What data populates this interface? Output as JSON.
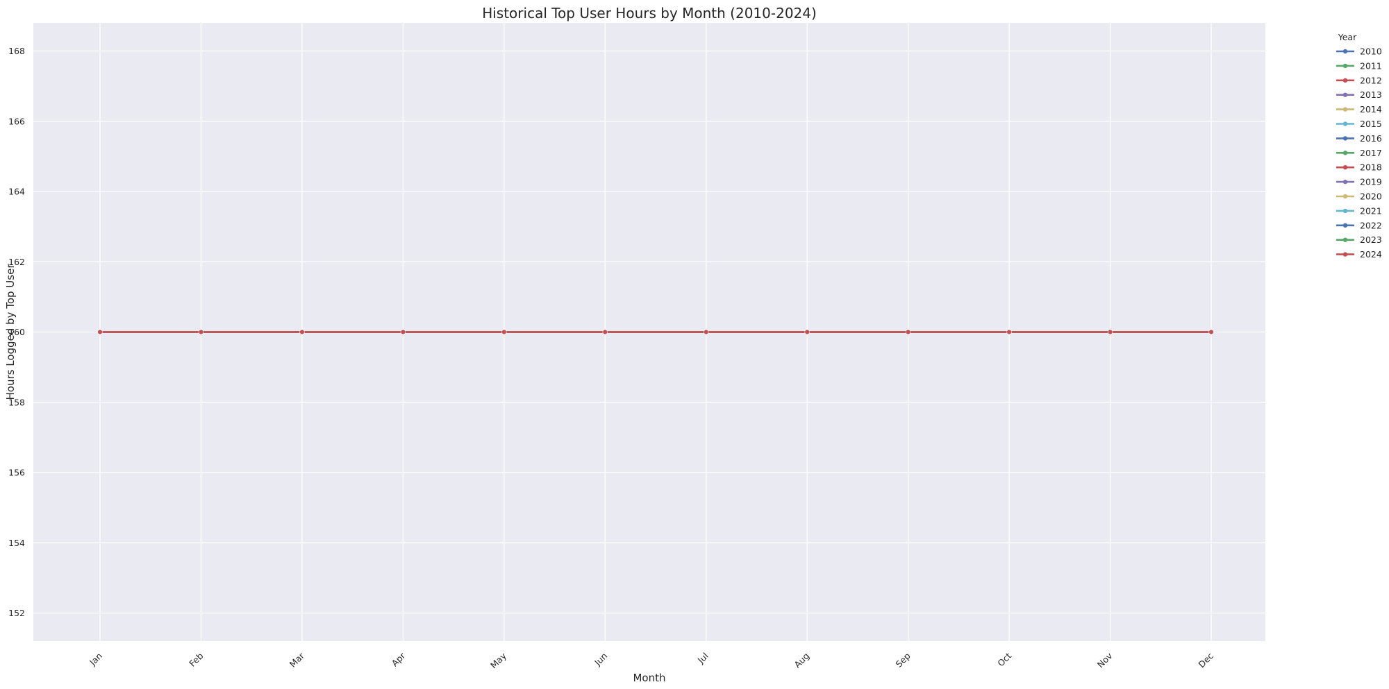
{
  "chart_data": {
    "type": "line",
    "title": "Historical Top User Hours by Month (2010-2024)",
    "xlabel": "Month",
    "ylabel": "Hours Logged by Top User",
    "categories": [
      "Jan",
      "Feb",
      "Mar",
      "Apr",
      "May",
      "Jun",
      "Jul",
      "Aug",
      "Sep",
      "Oct",
      "Nov",
      "Dec"
    ],
    "ylim": [
      151.2,
      168.8
    ],
    "yticks": [
      152,
      154,
      156,
      158,
      160,
      162,
      164,
      166,
      168
    ],
    "grid": true,
    "legend_title": "Year",
    "legend_position": "outside-top-right",
    "background_color": "#EAEAF2",
    "grid_color": "#FFFFFF",
    "series": [
      {
        "name": "2010",
        "color": "#4C72B0",
        "values": [
          160,
          160,
          160,
          160,
          160,
          160,
          160,
          160,
          160,
          160,
          160,
          160
        ]
      },
      {
        "name": "2011",
        "color": "#55A868",
        "values": [
          160,
          160,
          160,
          160,
          160,
          160,
          160,
          160,
          160,
          160,
          160,
          160
        ]
      },
      {
        "name": "2012",
        "color": "#C44E52",
        "values": [
          160,
          160,
          160,
          160,
          160,
          160,
          160,
          160,
          160,
          160,
          160,
          160
        ]
      },
      {
        "name": "2013",
        "color": "#8172B2",
        "values": [
          160,
          160,
          160,
          160,
          160,
          160,
          160,
          160,
          160,
          160,
          160,
          160
        ]
      },
      {
        "name": "2014",
        "color": "#CCB974",
        "values": [
          160,
          160,
          160,
          160,
          160,
          160,
          160,
          160,
          160,
          160,
          160,
          160
        ]
      },
      {
        "name": "2015",
        "color": "#64B5CD",
        "values": [
          160,
          160,
          160,
          160,
          160,
          160,
          160,
          160,
          160,
          160,
          160,
          160
        ]
      },
      {
        "name": "2016",
        "color": "#4C72B0",
        "values": [
          160,
          160,
          160,
          160,
          160,
          160,
          160,
          160,
          160,
          160,
          160,
          160
        ]
      },
      {
        "name": "2017",
        "color": "#55A868",
        "values": [
          160,
          160,
          160,
          160,
          160,
          160,
          160,
          160,
          160,
          160,
          160,
          160
        ]
      },
      {
        "name": "2018",
        "color": "#C44E52",
        "values": [
          160,
          160,
          160,
          160,
          160,
          160,
          160,
          160,
          160,
          160,
          160,
          160
        ]
      },
      {
        "name": "2019",
        "color": "#8172B2",
        "values": [
          160,
          160,
          160,
          160,
          160,
          160,
          160,
          160,
          160,
          160,
          160,
          160
        ]
      },
      {
        "name": "2020",
        "color": "#CCB974",
        "values": [
          160,
          160,
          160,
          160,
          160,
          160,
          160,
          160,
          160,
          160,
          160,
          160
        ]
      },
      {
        "name": "2021",
        "color": "#64B5CD",
        "values": [
          160,
          160,
          160,
          160,
          160,
          160,
          160,
          160,
          160,
          160,
          160,
          160
        ]
      },
      {
        "name": "2022",
        "color": "#4C72B0",
        "values": [
          160,
          160,
          160,
          160,
          160,
          160,
          160,
          160,
          160,
          160,
          160,
          160
        ]
      },
      {
        "name": "2023",
        "color": "#55A868",
        "values": [
          160,
          160,
          160,
          160,
          160,
          160,
          160,
          160,
          160,
          160,
          160,
          160
        ]
      },
      {
        "name": "2024",
        "color": "#C44E52",
        "values": [
          160,
          160,
          160,
          160,
          160,
          160,
          160,
          160,
          160,
          160,
          160,
          160
        ]
      }
    ]
  }
}
